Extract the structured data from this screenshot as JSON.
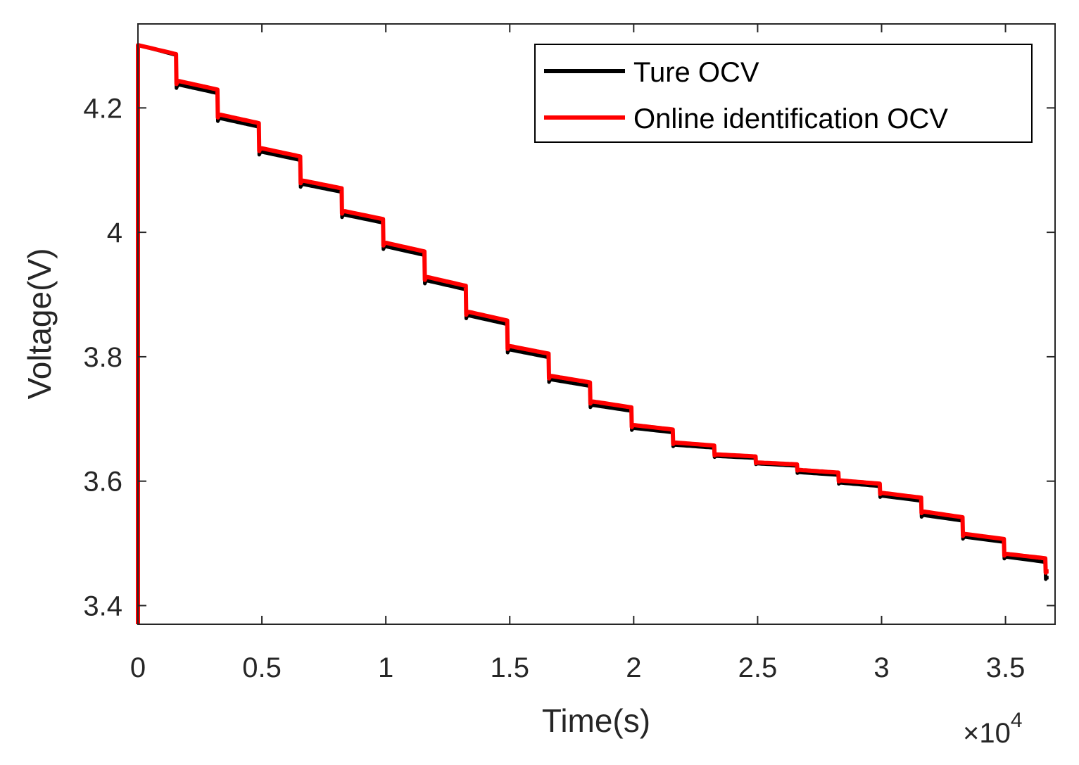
{
  "chart_data": {
    "type": "line",
    "xlabel": "Time(s)",
    "ylabel": "Voltage(V)",
    "x_exponent_label": "×10",
    "x_exponent_power": "4",
    "xlim": [
      0,
      37000
    ],
    "ylim": [
      3.37,
      4.335
    ],
    "xticks": [
      0,
      5000,
      10000,
      15000,
      20000,
      25000,
      30000,
      35000
    ],
    "xtick_labels": [
      "0",
      "0.5",
      "1",
      "1.5",
      "2",
      "2.5",
      "3",
      "3.5"
    ],
    "yticks": [
      3.4,
      3.6,
      3.8,
      4.0,
      4.2
    ],
    "ytick_labels": [
      "3.4",
      "3.6",
      "3.8",
      "4",
      "4.2"
    ],
    "grid": false,
    "legend_position": "top-right",
    "colors": {
      "Ture OCV": "#000000",
      "Online identification OCV": "#ff0000",
      "axes": "#262626"
    },
    "series": [
      {
        "name": "Ture OCV",
        "pulse_period": 1670,
        "x": [
          0,
          1670,
          3340,
          5010,
          6680,
          8350,
          10020,
          11690,
          13360,
          15030,
          16700,
          18370,
          20040,
          21710,
          23380,
          25050,
          26720,
          28390,
          30060,
          31730,
          33400,
          35070,
          36740
        ],
        "y": [
          4.301,
          4.237,
          4.183,
          4.129,
          4.077,
          4.028,
          3.977,
          3.922,
          3.866,
          3.811,
          3.763,
          3.722,
          3.685,
          3.658,
          3.64,
          3.628,
          3.614,
          3.597,
          3.576,
          3.545,
          3.51,
          3.478,
          3.445
        ]
      },
      {
        "name": "Online identification OCV",
        "pulse_period": 1670,
        "x": [
          0,
          0,
          1670,
          3340,
          5010,
          6680,
          8350,
          10020,
          11690,
          13360,
          15030,
          16700,
          18370,
          20040,
          21710,
          23380,
          25050,
          26720,
          28390,
          30060,
          31730,
          33400,
          35070,
          36740
        ],
        "y": [
          3.37,
          4.301,
          4.243,
          4.189,
          4.135,
          4.083,
          4.034,
          3.983,
          3.928,
          3.872,
          3.817,
          3.769,
          3.728,
          3.69,
          3.662,
          3.643,
          3.63,
          3.618,
          3.601,
          3.581,
          3.551,
          3.515,
          3.483,
          3.455
        ]
      }
    ]
  }
}
